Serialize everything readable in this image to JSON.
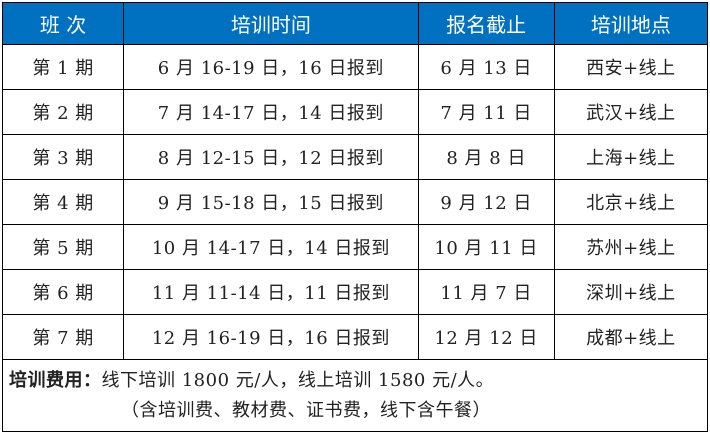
{
  "header": {
    "class": "班 次",
    "time": "培训时间",
    "deadline": "报名截止",
    "location": "培训地点"
  },
  "rows": [
    {
      "class": "第 1 期",
      "time": "6 月 16-19 日，16 日报到",
      "deadline": "6 月 13 日",
      "location": "西安+线上"
    },
    {
      "class": "第 2 期",
      "time": "7 月 14-17 日，14 日报到",
      "deadline": "7 月 11 日",
      "location": "武汉+线上"
    },
    {
      "class": "第 3 期",
      "time": "8 月 12-15 日，12 日报到",
      "deadline": "8 月 8 日",
      "location": "上海+线上"
    },
    {
      "class": "第 4 期",
      "time": "9 月 15-18 日，15 日报到",
      "deadline": "9 月 12 日",
      "location": "北京+线上"
    },
    {
      "class": "第 5 期",
      "time": "10 月 14-17 日，14 日报到",
      "deadline": "10 月 11 日",
      "location": "苏州+线上"
    },
    {
      "class": "第 6 期",
      "time": "11 月 11-14 日，11 日报到",
      "deadline": "11 月 7 日",
      "location": "深圳+线上"
    },
    {
      "class": "第 7 期",
      "time": "12 月 16-19 日，16 日报到",
      "deadline": "12 月 12 日",
      "location": "成都+线上"
    }
  ],
  "footer": {
    "label": "培训费用：",
    "line1": "线下培训 1800 元/人，线上培训 1580 元/人。",
    "line2": "（含培训费、教材费、证书费，线下含午餐）"
  },
  "colors": {
    "header_bg": "#0070C0",
    "header_text": "#FFFFFF"
  }
}
